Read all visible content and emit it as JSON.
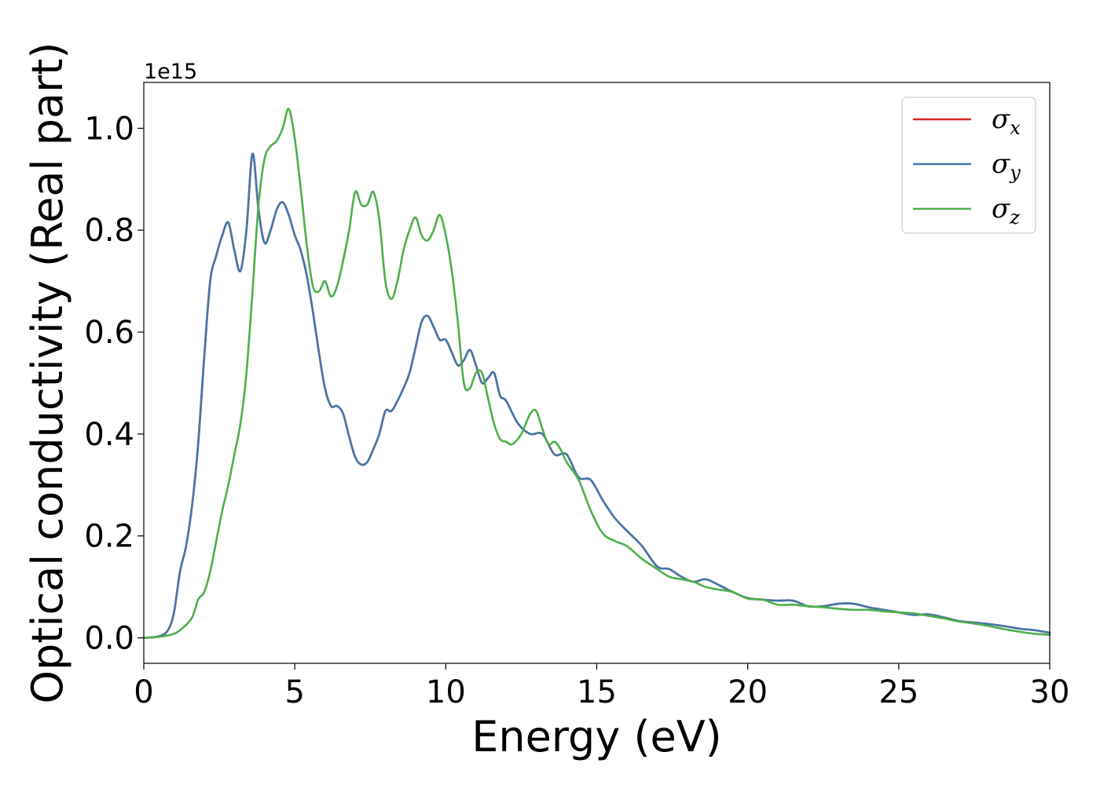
{
  "chart_data": {
    "type": "line",
    "title": "",
    "xlabel": "Energy (eV)",
    "ylabel": "Optical conductivity (Real part)",
    "y_offset_text": "1e15",
    "xlim": [
      0,
      30
    ],
    "ylim": [
      -0.05,
      1.09
    ],
    "x_ticks": [
      0,
      5,
      10,
      15,
      20,
      25,
      30
    ],
    "x_tick_labels": [
      "0",
      "5",
      "10",
      "15",
      "20",
      "25",
      "30"
    ],
    "y_ticks": [
      0.0,
      0.2,
      0.4,
      0.6,
      0.8,
      1.0
    ],
    "y_tick_labels": [
      "0.0",
      "0.2",
      "0.4",
      "0.6",
      "0.8",
      "1.0"
    ],
    "grid": false,
    "legend_position": "top-right",
    "colors": {
      "sigma_x": "#d62728",
      "sigma_y": "#4477aa",
      "sigma_z": "#4daf4a"
    },
    "series": [
      {
        "name": "σx",
        "name_base": "σ",
        "name_sub": "x",
        "color": "#d62728",
        "x": [
          0,
          0.5,
          0.8,
          1.0,
          1.2,
          1.4,
          1.6,
          1.8,
          2.0,
          2.2,
          2.4,
          2.6,
          2.8,
          3.0,
          3.2,
          3.4,
          3.6,
          3.8,
          4.0,
          4.2,
          4.4,
          4.6,
          4.8,
          5.0,
          5.2,
          5.4,
          5.6,
          5.8,
          6.0,
          6.2,
          6.4,
          6.6,
          6.8,
          7.0,
          7.2,
          7.4,
          7.6,
          7.8,
          8.0,
          8.2,
          8.4,
          8.6,
          8.8,
          9.0,
          9.2,
          9.4,
          9.6,
          9.8,
          10.0,
          10.2,
          10.4,
          10.6,
          10.8,
          11.0,
          11.2,
          11.4,
          11.6,
          11.8,
          12.0,
          12.4,
          12.8,
          13.2,
          13.6,
          14.0,
          14.4,
          14.8,
          15.2,
          15.6,
          16.0,
          16.5,
          17.0,
          17.4,
          17.8,
          18.2,
          18.6,
          19.0,
          19.5,
          20.0,
          20.5,
          21.0,
          21.5,
          22.0,
          22.5,
          23.0,
          23.5,
          24.0,
          24.5,
          25.0,
          25.5,
          26.0,
          26.5,
          27.0,
          27.5,
          28.0,
          28.5,
          29.0,
          29.5,
          30.0
        ],
        "values": [
          0.0,
          0.003,
          0.015,
          0.05,
          0.13,
          0.18,
          0.26,
          0.38,
          0.55,
          0.7,
          0.75,
          0.79,
          0.815,
          0.76,
          0.72,
          0.8,
          0.95,
          0.84,
          0.775,
          0.8,
          0.84,
          0.855,
          0.83,
          0.79,
          0.76,
          0.71,
          0.64,
          0.56,
          0.49,
          0.455,
          0.455,
          0.44,
          0.395,
          0.355,
          0.34,
          0.345,
          0.37,
          0.4,
          0.445,
          0.445,
          0.465,
          0.49,
          0.52,
          0.57,
          0.62,
          0.632,
          0.61,
          0.585,
          0.585,
          0.56,
          0.535,
          0.545,
          0.565,
          0.535,
          0.5,
          0.51,
          0.52,
          0.475,
          0.465,
          0.42,
          0.4,
          0.4,
          0.36,
          0.36,
          0.315,
          0.31,
          0.27,
          0.235,
          0.21,
          0.18,
          0.14,
          0.135,
          0.12,
          0.11,
          0.115,
          0.105,
          0.09,
          0.078,
          0.075,
          0.073,
          0.073,
          0.062,
          0.062,
          0.067,
          0.067,
          0.06,
          0.055,
          0.05,
          0.045,
          0.046,
          0.04,
          0.033,
          0.03,
          0.027,
          0.023,
          0.018,
          0.015,
          0.01
        ]
      },
      {
        "name": "σy",
        "name_base": "σ",
        "name_sub": "y",
        "color": "#4477aa",
        "x": [
          0,
          0.5,
          0.8,
          1.0,
          1.2,
          1.4,
          1.6,
          1.8,
          2.0,
          2.2,
          2.4,
          2.6,
          2.8,
          3.0,
          3.2,
          3.4,
          3.6,
          3.8,
          4.0,
          4.2,
          4.4,
          4.6,
          4.8,
          5.0,
          5.2,
          5.4,
          5.6,
          5.8,
          6.0,
          6.2,
          6.4,
          6.6,
          6.8,
          7.0,
          7.2,
          7.4,
          7.6,
          7.8,
          8.0,
          8.2,
          8.4,
          8.6,
          8.8,
          9.0,
          9.2,
          9.4,
          9.6,
          9.8,
          10.0,
          10.2,
          10.4,
          10.6,
          10.8,
          11.0,
          11.2,
          11.4,
          11.6,
          11.8,
          12.0,
          12.4,
          12.8,
          13.2,
          13.6,
          14.0,
          14.4,
          14.8,
          15.2,
          15.6,
          16.0,
          16.5,
          17.0,
          17.4,
          17.8,
          18.2,
          18.6,
          19.0,
          19.5,
          20.0,
          20.5,
          21.0,
          21.5,
          22.0,
          22.5,
          23.0,
          23.5,
          24.0,
          24.5,
          25.0,
          25.5,
          26.0,
          26.5,
          27.0,
          27.5,
          28.0,
          28.5,
          29.0,
          29.5,
          30.0
        ],
        "values": [
          0.0,
          0.003,
          0.015,
          0.05,
          0.13,
          0.18,
          0.26,
          0.38,
          0.55,
          0.7,
          0.75,
          0.79,
          0.815,
          0.76,
          0.72,
          0.8,
          0.95,
          0.84,
          0.775,
          0.8,
          0.84,
          0.855,
          0.83,
          0.79,
          0.76,
          0.71,
          0.64,
          0.56,
          0.49,
          0.455,
          0.455,
          0.44,
          0.395,
          0.355,
          0.34,
          0.345,
          0.37,
          0.4,
          0.445,
          0.445,
          0.465,
          0.49,
          0.52,
          0.57,
          0.62,
          0.632,
          0.61,
          0.585,
          0.585,
          0.56,
          0.535,
          0.545,
          0.565,
          0.535,
          0.5,
          0.51,
          0.52,
          0.475,
          0.465,
          0.42,
          0.4,
          0.4,
          0.36,
          0.36,
          0.315,
          0.31,
          0.27,
          0.235,
          0.21,
          0.18,
          0.14,
          0.135,
          0.12,
          0.11,
          0.115,
          0.105,
          0.09,
          0.078,
          0.075,
          0.073,
          0.073,
          0.062,
          0.062,
          0.067,
          0.067,
          0.06,
          0.055,
          0.05,
          0.045,
          0.046,
          0.04,
          0.033,
          0.03,
          0.027,
          0.023,
          0.018,
          0.015,
          0.01
        ]
      },
      {
        "name": "σz",
        "name_base": "σ",
        "name_sub": "z",
        "color": "#4daf4a",
        "x": [
          0,
          0.5,
          1.0,
          1.3,
          1.6,
          1.8,
          2.0,
          2.2,
          2.4,
          2.6,
          2.8,
          3.0,
          3.2,
          3.4,
          3.6,
          3.8,
          4.0,
          4.2,
          4.4,
          4.6,
          4.8,
          5.0,
          5.2,
          5.4,
          5.6,
          5.8,
          6.0,
          6.2,
          6.4,
          6.6,
          6.8,
          7.0,
          7.2,
          7.4,
          7.6,
          7.8,
          8.0,
          8.2,
          8.4,
          8.6,
          8.8,
          9.0,
          9.2,
          9.4,
          9.6,
          9.8,
          10.0,
          10.2,
          10.4,
          10.6,
          10.8,
          11.0,
          11.2,
          11.4,
          11.6,
          11.8,
          12.0,
          12.2,
          12.5,
          12.8,
          13.0,
          13.2,
          13.4,
          13.6,
          13.8,
          14.0,
          14.4,
          14.8,
          15.2,
          15.6,
          16.0,
          16.5,
          17.0,
          17.4,
          17.8,
          18.2,
          18.6,
          19.0,
          19.5,
          20.0,
          20.5,
          21.0,
          21.5,
          22.0,
          22.5,
          23.0,
          23.5,
          24.0,
          24.5,
          25.0,
          25.5,
          26.0,
          26.5,
          27.0,
          27.5,
          28.0,
          28.5,
          29.0,
          29.5,
          30.0
        ],
        "values": [
          0.0,
          0.002,
          0.008,
          0.02,
          0.04,
          0.075,
          0.09,
          0.13,
          0.19,
          0.25,
          0.3,
          0.36,
          0.42,
          0.52,
          0.68,
          0.85,
          0.94,
          0.965,
          0.975,
          1.0,
          1.038,
          0.98,
          0.88,
          0.77,
          0.69,
          0.68,
          0.7,
          0.67,
          0.69,
          0.74,
          0.8,
          0.875,
          0.85,
          0.85,
          0.875,
          0.82,
          0.7,
          0.665,
          0.7,
          0.76,
          0.8,
          0.825,
          0.79,
          0.78,
          0.8,
          0.83,
          0.79,
          0.72,
          0.62,
          0.5,
          0.49,
          0.52,
          0.52,
          0.47,
          0.42,
          0.39,
          0.385,
          0.38,
          0.4,
          0.44,
          0.445,
          0.41,
          0.38,
          0.385,
          0.37,
          0.345,
          0.31,
          0.25,
          0.205,
          0.19,
          0.18,
          0.155,
          0.135,
          0.12,
          0.115,
          0.11,
          0.1,
          0.095,
          0.09,
          0.077,
          0.075,
          0.065,
          0.065,
          0.062,
          0.06,
          0.057,
          0.055,
          0.055,
          0.052,
          0.05,
          0.048,
          0.043,
          0.038,
          0.032,
          0.028,
          0.023,
          0.017,
          0.012,
          0.008,
          0.006
        ]
      }
    ]
  }
}
